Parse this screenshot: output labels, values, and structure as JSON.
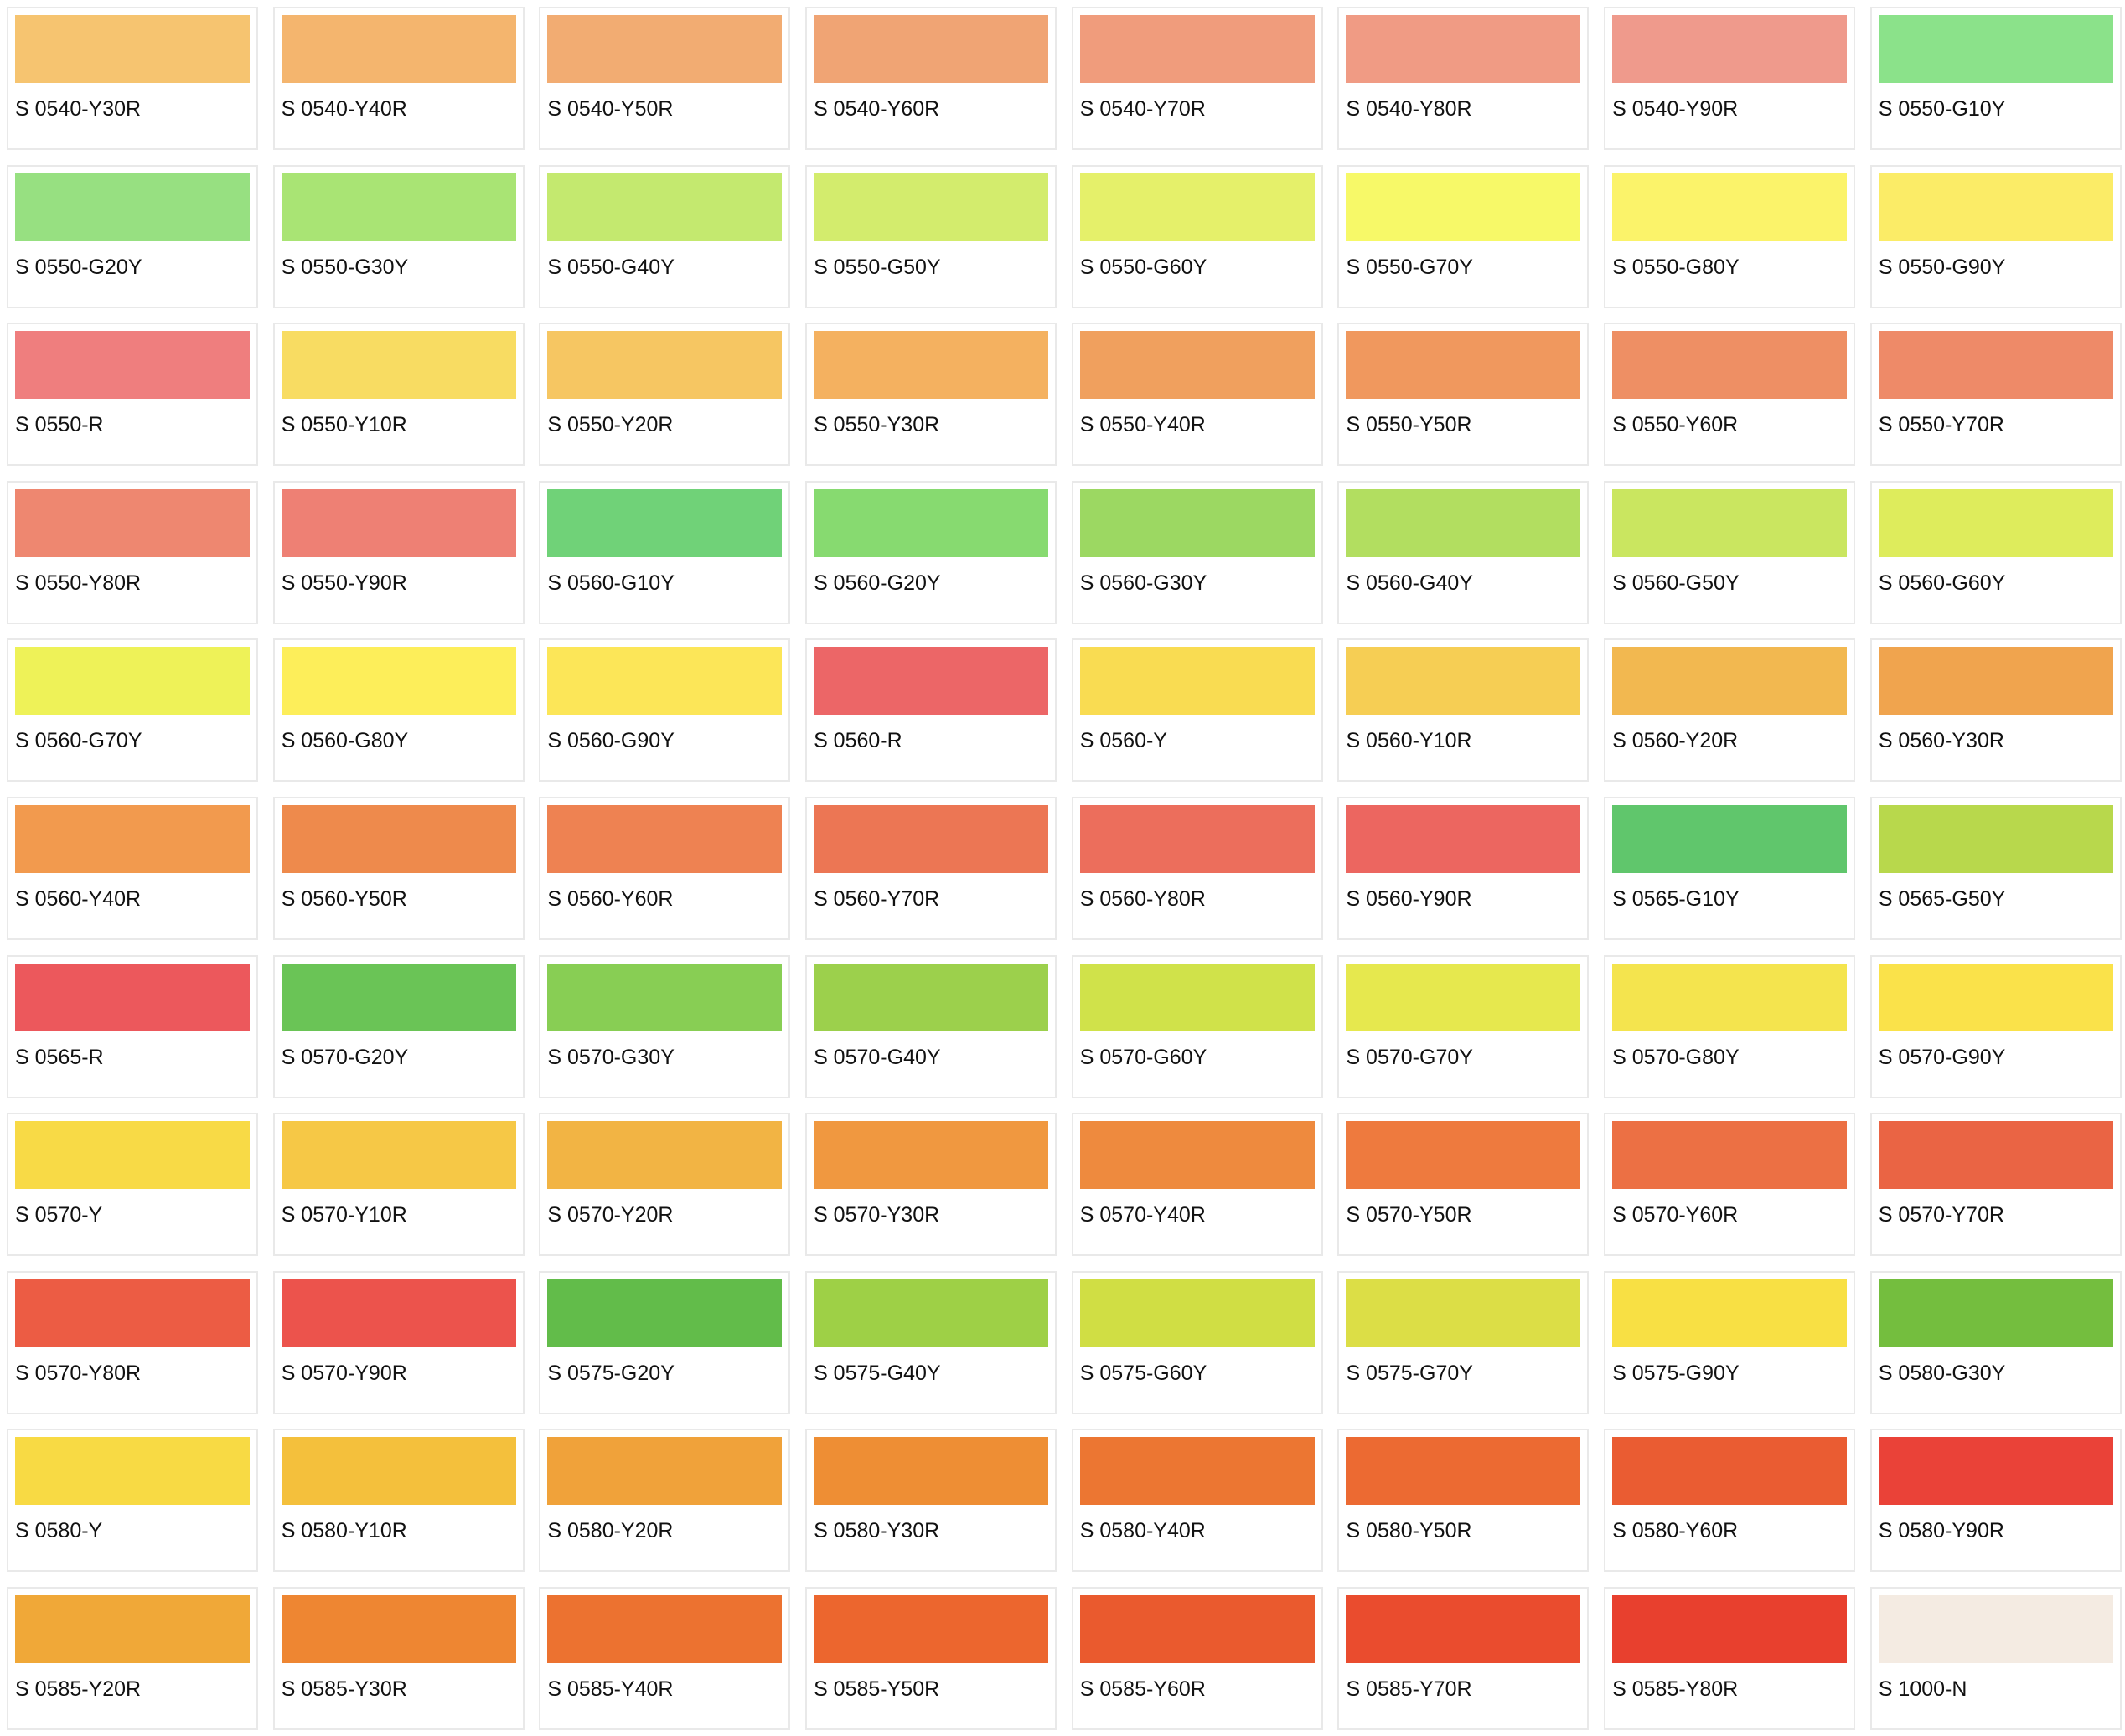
{
  "swatches": [
    {
      "code": "S 0540-Y30R",
      "color": "#F6C470"
    },
    {
      "code": "S 0540-Y40R",
      "color": "#F4B56E"
    },
    {
      "code": "S 0540-Y50R",
      "color": "#F2AC72"
    },
    {
      "code": "S 0540-Y60R",
      "color": "#F0A474"
    },
    {
      "code": "S 0540-Y70R",
      "color": "#F09C7C"
    },
    {
      "code": "S 0540-Y80R",
      "color": "#F09B84"
    },
    {
      "code": "S 0540-Y90R",
      "color": "#EF9A8C"
    },
    {
      "code": "S 0550-G10Y",
      "color": "#8BE28A"
    },
    {
      "code": "S 0550-G20Y",
      "color": "#97E081"
    },
    {
      "code": "S 0550-G30Y",
      "color": "#A9E474"
    },
    {
      "code": "S 0550-G40Y",
      "color": "#C4E96F"
    },
    {
      "code": "S 0550-G50Y",
      "color": "#D3EC6D"
    },
    {
      "code": "S 0550-G60Y",
      "color": "#E5F06A"
    },
    {
      "code": "S 0550-G70Y",
      "color": "#F7F968"
    },
    {
      "code": "S 0550-G80Y",
      "color": "#FBF36A"
    },
    {
      "code": "S 0550-G90Y",
      "color": "#FBEC67"
    },
    {
      "code": "S 0550-R",
      "color": "#EF7E7E"
    },
    {
      "code": "S 0550-Y10R",
      "color": "#F8DC62"
    },
    {
      "code": "S 0550-Y20R",
      "color": "#F6C662"
    },
    {
      "code": "S 0550-Y30R",
      "color": "#F4B160"
    },
    {
      "code": "S 0550-Y40R",
      "color": "#F0A05E"
    },
    {
      "code": "S 0550-Y50R",
      "color": "#F0985E"
    },
    {
      "code": "S 0550-Y60R",
      "color": "#EE8F64"
    },
    {
      "code": "S 0550-Y70R",
      "color": "#EE8A68"
    },
    {
      "code": "S 0550-Y80R",
      "color": "#EE8770"
    },
    {
      "code": "S 0550-Y90R",
      "color": "#EE8074"
    },
    {
      "code": "S 0560-G10Y",
      "color": "#70D278"
    },
    {
      "code": "S 0560-G20Y",
      "color": "#87DA70"
    },
    {
      "code": "S 0560-G30Y",
      "color": "#9CD862"
    },
    {
      "code": "S 0560-G40Y",
      "color": "#B2DE60"
    },
    {
      "code": "S 0560-G50Y",
      "color": "#CAE660"
    },
    {
      "code": "S 0560-G60Y",
      "color": "#DEEC5C"
    },
    {
      "code": "S 0560-G70Y",
      "color": "#EEF258"
    },
    {
      "code": "S 0560-G80Y",
      "color": "#FDEE5A"
    },
    {
      "code": "S 0560-G90Y",
      "color": "#FCE658"
    },
    {
      "code": "S 0560-R",
      "color": "#EC6667"
    },
    {
      "code": "S 0560-Y",
      "color": "#F9DC52"
    },
    {
      "code": "S 0560-Y10R",
      "color": "#F6CE54"
    },
    {
      "code": "S 0560-Y20R",
      "color": "#F2B850"
    },
    {
      "code": "S 0560-Y30R",
      "color": "#F0A44E"
    },
    {
      "code": "S 0560-Y40R",
      "color": "#F29A4E"
    },
    {
      "code": "S 0560-Y50R",
      "color": "#EE8A4C"
    },
    {
      "code": "S 0560-Y60R",
      "color": "#EE8252"
    },
    {
      "code": "S 0560-Y70R",
      "color": "#EC7654"
    },
    {
      "code": "S 0560-Y80R",
      "color": "#EC6E5C"
    },
    {
      "code": "S 0560-Y90R",
      "color": "#EC6660"
    },
    {
      "code": "S 0565-G10Y",
      "color": "#60C66C"
    },
    {
      "code": "S 0565-G50Y",
      "color": "#B8D84C"
    },
    {
      "code": "S 0565-R",
      "color": "#EC585C"
    },
    {
      "code": "S 0570-G20Y",
      "color": "#6AC456"
    },
    {
      "code": "S 0570-G30Y",
      "color": "#88CE54"
    },
    {
      "code": "S 0570-G40Y",
      "color": "#9CD04C"
    },
    {
      "code": "S 0570-G60Y",
      "color": "#D0E24A"
    },
    {
      "code": "S 0570-G70Y",
      "color": "#E6E84E"
    },
    {
      "code": "S 0570-G80Y",
      "color": "#F4E44E"
    },
    {
      "code": "S 0570-G90Y",
      "color": "#FAE24A"
    },
    {
      "code": "S 0570-Y",
      "color": "#F8DA46"
    },
    {
      "code": "S 0570-Y10R",
      "color": "#F6C846"
    },
    {
      "code": "S 0570-Y20R",
      "color": "#F2B444"
    },
    {
      "code": "S 0570-Y30R",
      "color": "#F09840"
    },
    {
      "code": "S 0570-Y40R",
      "color": "#EE8A3E"
    },
    {
      "code": "S 0570-Y50R",
      "color": "#EE7A3E"
    },
    {
      "code": "S 0570-Y60R",
      "color": "#EC7044"
    },
    {
      "code": "S 0570-Y70R",
      "color": "#EA6444"
    },
    {
      "code": "S 0570-Y80R",
      "color": "#EC5C44"
    },
    {
      "code": "S 0570-Y90R",
      "color": "#EC534C"
    },
    {
      "code": "S 0575-G20Y",
      "color": "#62BC4A"
    },
    {
      "code": "S 0575-G40Y",
      "color": "#9ED046"
    },
    {
      "code": "S 0575-G60Y",
      "color": "#D0DE44"
    },
    {
      "code": "S 0575-G70Y",
      "color": "#DCDE46"
    },
    {
      "code": "S 0575-G90Y",
      "color": "#F8E044"
    },
    {
      "code": "S 0580-G30Y",
      "color": "#74BE3E"
    },
    {
      "code": "S 0580-Y",
      "color": "#F8DA44"
    },
    {
      "code": "S 0580-Y10R",
      "color": "#F4C03C"
    },
    {
      "code": "S 0580-Y20R",
      "color": "#F0A23A"
    },
    {
      "code": "S 0580-Y30R",
      "color": "#EE8E34"
    },
    {
      "code": "S 0580-Y40R",
      "color": "#EC7632"
    },
    {
      "code": "S 0580-Y50R",
      "color": "#EC6A32"
    },
    {
      "code": "S 0580-Y60R",
      "color": "#EA5C32"
    },
    {
      "code": "S 0580-Y90R",
      "color": "#EA4238"
    },
    {
      "code": "S 0585-Y20R",
      "color": "#F0A838"
    },
    {
      "code": "S 0585-Y30R",
      "color": "#EE8632"
    },
    {
      "code": "S 0585-Y40R",
      "color": "#EC7230"
    },
    {
      "code": "S 0585-Y50R",
      "color": "#EC662E"
    },
    {
      "code": "S 0585-Y60R",
      "color": "#EA5A2E"
    },
    {
      "code": "S 0585-Y70R",
      "color": "#EA4C2E"
    },
    {
      "code": "S 0585-Y80R",
      "color": "#E8402E"
    },
    {
      "code": "S 1000-N",
      "color": "#F4EBE2"
    }
  ]
}
